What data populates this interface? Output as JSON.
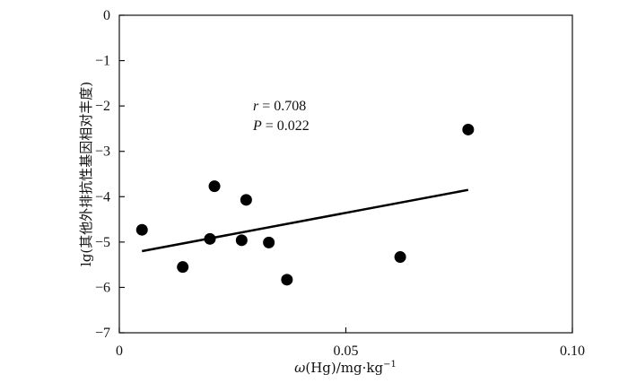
{
  "chart_data": {
    "type": "scatter",
    "xlabel_prefix": "ω",
    "xlabel_mid": "(Hg)/mg·kg",
    "xlabel_sup": "−1",
    "ylabel": "lg(其他外排抗性基因相对丰度)",
    "xlim": [
      0,
      0.1
    ],
    "ylim": [
      -7,
      0
    ],
    "xticks": [
      0,
      0.05,
      0.1
    ],
    "xtick_labels": [
      "0",
      "0.05",
      "0.10"
    ],
    "yticks": [
      0,
      -1,
      -2,
      -3,
      -4,
      -5,
      -6,
      -7
    ],
    "ytick_labels": [
      "0",
      "−1",
      "−2",
      "−3",
      "−4",
      "−5",
      "−6",
      "−7"
    ],
    "grid": false,
    "points": [
      {
        "x": 0.005,
        "y": -4.73
      },
      {
        "x": 0.014,
        "y": -5.55
      },
      {
        "x": 0.02,
        "y": -4.93
      },
      {
        "x": 0.021,
        "y": -3.77
      },
      {
        "x": 0.027,
        "y": -4.96
      },
      {
        "x": 0.028,
        "y": -4.07
      },
      {
        "x": 0.033,
        "y": -5.01
      },
      {
        "x": 0.037,
        "y": -5.83
      },
      {
        "x": 0.062,
        "y": -5.33
      },
      {
        "x": 0.077,
        "y": -2.52
      }
    ],
    "trendline": {
      "x": [
        0.005,
        0.077
      ],
      "y": [
        -5.2,
        -3.85
      ]
    },
    "annotation": {
      "r_symbol": "r",
      "r_value": " = 0.708",
      "p_symbol": "P",
      "p_value": " = 0.022"
    }
  }
}
